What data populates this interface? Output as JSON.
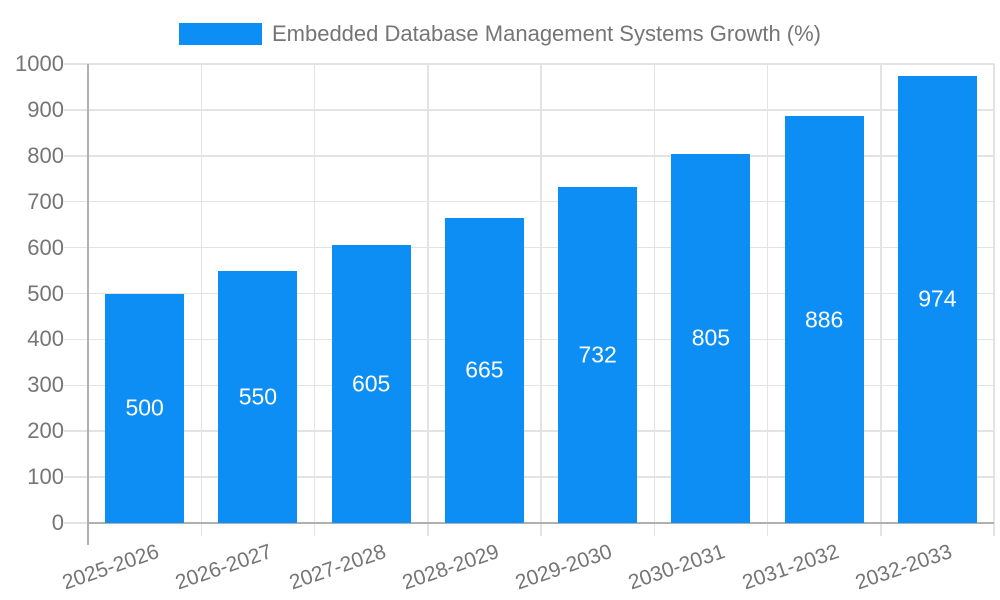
{
  "chart_data": {
    "type": "bar",
    "title": "Embedded Database Management Systems Growth (%)",
    "xlabel": "",
    "ylabel": "",
    "categories": [
      "2025-2026",
      "2026-2027",
      "2027-2028",
      "2028-2029",
      "2029-2030",
      "2030-2031",
      "2031-2032",
      "2032-2033"
    ],
    "series": [
      {
        "name": "Embedded Database Management Systems Growth (%)",
        "color": "#0d8ef4",
        "values": [
          500,
          550,
          605,
          665,
          732,
          805,
          886,
          974
        ]
      }
    ],
    "ylim": [
      0,
      1000
    ],
    "y_ticks": [
      0,
      100,
      200,
      300,
      400,
      500,
      600,
      700,
      800,
      900,
      1000
    ],
    "grid": true,
    "legend": {
      "position": "top",
      "entries": [
        {
          "label": "Embedded Database Management Systems Growth (%)",
          "color": "#0d8ef4"
        }
      ]
    },
    "styles": {
      "text_color": "#757575",
      "grid_color": "#e3e3e3",
      "axis_color": "#b0b0b0",
      "bar_label_color": "#ffffff",
      "background": "#ffffff"
    }
  }
}
